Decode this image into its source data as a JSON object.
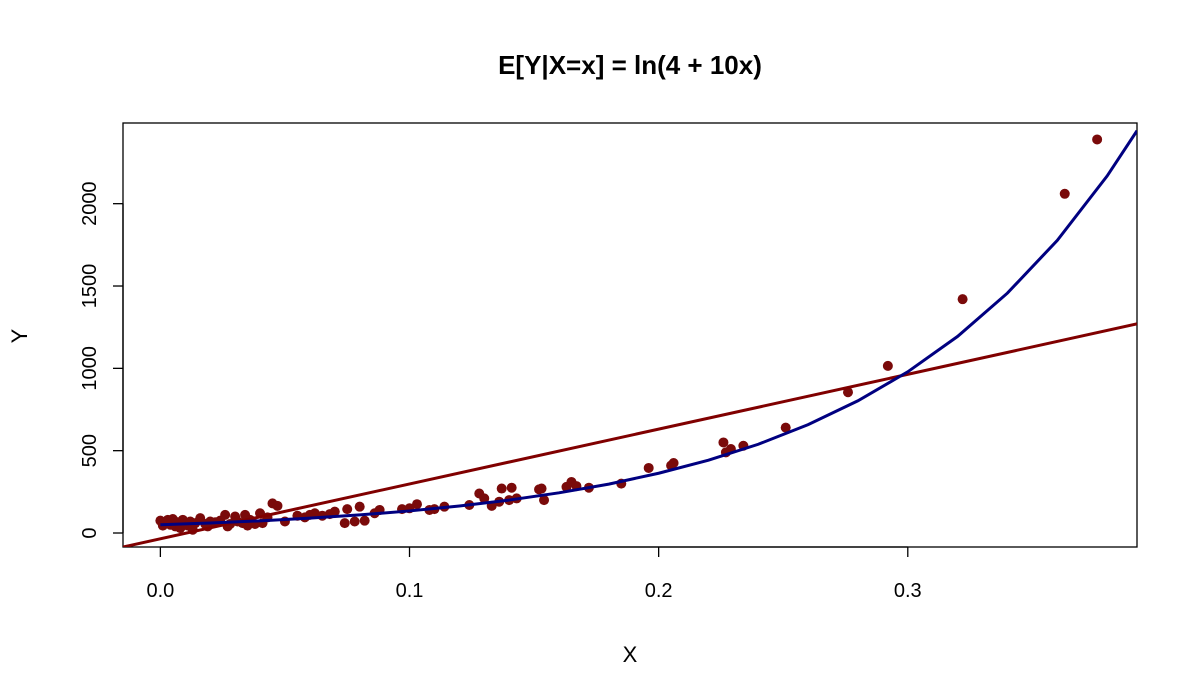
{
  "chart_data": {
    "type": "scatter",
    "title": "E[Y|X=x] = ln(4 + 10x)",
    "xlabel": "X",
    "ylabel": "Y",
    "xlim": [
      -0.015,
      0.392
    ],
    "ylim": [
      -85,
      2490
    ],
    "xticks": [
      0.0,
      0.1,
      0.2,
      0.3
    ],
    "xtick_labels": [
      "0.0",
      "0.1",
      "0.2",
      "0.3"
    ],
    "yticks": [
      0,
      500,
      1000,
      1500,
      2000
    ],
    "ytick_labels": [
      "0",
      "500",
      "1000",
      "1500",
      "2000"
    ],
    "grid": false,
    "legend": "none",
    "series": [
      {
        "kind": "points",
        "color": "#7a0a0a",
        "points": [
          [
            0.0,
            75
          ],
          [
            0.001,
            45
          ],
          [
            0.002,
            60
          ],
          [
            0.003,
            80
          ],
          [
            0.004,
            50
          ],
          [
            0.005,
            85
          ],
          [
            0.006,
            40
          ],
          [
            0.007,
            65
          ],
          [
            0.008,
            30
          ],
          [
            0.009,
            80
          ],
          [
            0.01,
            55
          ],
          [
            0.011,
            45
          ],
          [
            0.012,
            70
          ],
          [
            0.013,
            20
          ],
          [
            0.014,
            60
          ],
          [
            0.016,
            90
          ],
          [
            0.018,
            55
          ],
          [
            0.019,
            40
          ],
          [
            0.02,
            70
          ],
          [
            0.022,
            65
          ],
          [
            0.024,
            75
          ],
          [
            0.026,
            110
          ],
          [
            0.027,
            40
          ],
          [
            0.028,
            55
          ],
          [
            0.03,
            100
          ],
          [
            0.031,
            70
          ],
          [
            0.033,
            60
          ],
          [
            0.034,
            110
          ],
          [
            0.035,
            45
          ],
          [
            0.036,
            80
          ],
          [
            0.038,
            55
          ],
          [
            0.04,
            120
          ],
          [
            0.041,
            60
          ],
          [
            0.043,
            95
          ],
          [
            0.045,
            180
          ],
          [
            0.047,
            165
          ],
          [
            0.05,
            70
          ],
          [
            0.055,
            105
          ],
          [
            0.058,
            95
          ],
          [
            0.06,
            110
          ],
          [
            0.062,
            120
          ],
          [
            0.065,
            105
          ],
          [
            0.068,
            115
          ],
          [
            0.07,
            130
          ],
          [
            0.074,
            60
          ],
          [
            0.075,
            145
          ],
          [
            0.078,
            70
          ],
          [
            0.08,
            160
          ],
          [
            0.082,
            75
          ],
          [
            0.086,
            120
          ],
          [
            0.088,
            140
          ],
          [
            0.097,
            145
          ],
          [
            0.1,
            150
          ],
          [
            0.103,
            175
          ],
          [
            0.108,
            140
          ],
          [
            0.11,
            145
          ],
          [
            0.114,
            160
          ],
          [
            0.124,
            170
          ],
          [
            0.128,
            240
          ],
          [
            0.13,
            210
          ],
          [
            0.133,
            165
          ],
          [
            0.136,
            190
          ],
          [
            0.137,
            270
          ],
          [
            0.14,
            200
          ],
          [
            0.141,
            275
          ],
          [
            0.143,
            210
          ],
          [
            0.152,
            265
          ],
          [
            0.153,
            270
          ],
          [
            0.154,
            200
          ],
          [
            0.163,
            280
          ],
          [
            0.165,
            310
          ],
          [
            0.167,
            285
          ],
          [
            0.172,
            275
          ],
          [
            0.185,
            300
          ],
          [
            0.196,
            395
          ],
          [
            0.205,
            410
          ],
          [
            0.206,
            425
          ],
          [
            0.226,
            550
          ],
          [
            0.227,
            490
          ],
          [
            0.229,
            510
          ],
          [
            0.234,
            530
          ],
          [
            0.251,
            640
          ],
          [
            0.276,
            855
          ],
          [
            0.292,
            1015
          ],
          [
            0.322,
            1420
          ],
          [
            0.363,
            2060
          ],
          [
            0.376,
            2390
          ]
        ]
      },
      {
        "kind": "line",
        "color": "#800000",
        "points": [
          [
            -0.015,
            -85
          ],
          [
            0.392,
            1270
          ]
        ]
      },
      {
        "kind": "curve",
        "color": "#000080",
        "points": [
          [
            0.0,
            50
          ],
          [
            0.02,
            61
          ],
          [
            0.04,
            74
          ],
          [
            0.06,
            90
          ],
          [
            0.08,
            110
          ],
          [
            0.1,
            134
          ],
          [
            0.12,
            164
          ],
          [
            0.14,
            200
          ],
          [
            0.16,
            244
          ],
          [
            0.18,
            297
          ],
          [
            0.2,
            363
          ],
          [
            0.22,
            442
          ],
          [
            0.24,
            539
          ],
          [
            0.26,
            658
          ],
          [
            0.28,
            803
          ],
          [
            0.3,
            979
          ],
          [
            0.32,
            1194
          ],
          [
            0.34,
            1457
          ],
          [
            0.36,
            1777
          ],
          [
            0.38,
            2168
          ],
          [
            0.392,
            2443
          ]
        ]
      }
    ]
  }
}
